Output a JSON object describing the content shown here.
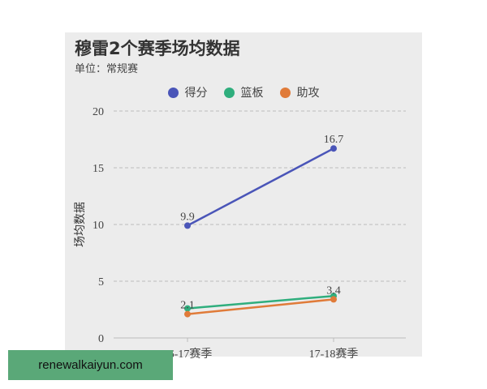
{
  "chart_data": {
    "type": "line",
    "title": "穆雷2个赛季场均数据",
    "subtitle": "单位：常规赛",
    "ylabel": "场均数据",
    "xlabel": "",
    "categories": [
      "16-17赛季",
      "17-18赛季"
    ],
    "ylim": [
      0,
      20
    ],
    "yticks": [
      0,
      5,
      10,
      15,
      20
    ],
    "grid": true,
    "legend_position": "top",
    "series": [
      {
        "name": "得分",
        "color": "#4a55b8",
        "values": [
          9.9,
          16.7
        ],
        "labels": [
          "9.9",
          "16.7"
        ]
      },
      {
        "name": "篮板",
        "color": "#2fae7d",
        "values": [
          2.6,
          3.7
        ],
        "labels": [
          "",
          ""
        ]
      },
      {
        "name": "助攻",
        "color": "#e07b39",
        "values": [
          2.1,
          3.4
        ],
        "labels": [
          "2.1",
          "3.4"
        ]
      }
    ]
  },
  "watermark": "renewalkaiyun.com"
}
